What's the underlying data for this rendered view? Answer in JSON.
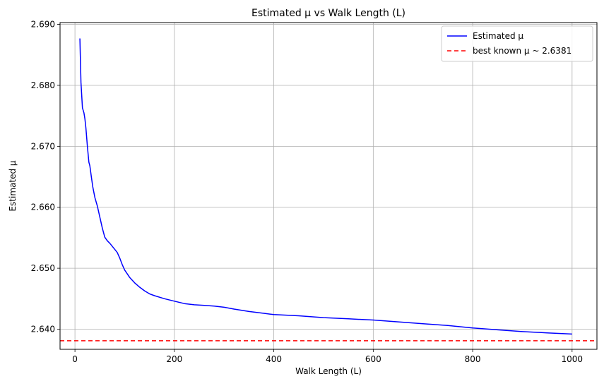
{
  "chart_data": {
    "type": "line",
    "title": "Estimated μ vs Walk Length (L)",
    "xlabel": "Walk Length (L)",
    "ylabel": "Estimated μ",
    "xlim": [
      -30,
      1050
    ],
    "ylim": [
      2.6367,
      2.6903
    ],
    "xticks": [
      0,
      200,
      400,
      600,
      800,
      1000
    ],
    "xtick_labels": [
      "0",
      "200",
      "400",
      "600",
      "800",
      "1000"
    ],
    "yticks": [
      2.64,
      2.65,
      2.66,
      2.67,
      2.68,
      2.69
    ],
    "ytick_labels": [
      "2.640",
      "2.650",
      "2.660",
      "2.670",
      "2.680",
      "2.690"
    ],
    "grid": true,
    "legend_position": "top-right",
    "series": [
      {
        "name": "Estimated μ",
        "color": "#0000ff",
        "style": "solid",
        "x": [
          10,
          12,
          15,
          18,
          20,
          22,
          25,
          28,
          30,
          33,
          36,
          40,
          45,
          50,
          55,
          60,
          65,
          70,
          80,
          85,
          90,
          95,
          100,
          110,
          120,
          130,
          140,
          150,
          160,
          180,
          200,
          220,
          240,
          260,
          280,
          300,
          320,
          350,
          380,
          400,
          450,
          500,
          550,
          600,
          650,
          700,
          750,
          800,
          850,
          900,
          950,
          1000
        ],
        "y": [
          2.6877,
          2.6805,
          2.6763,
          2.6755,
          2.6745,
          2.673,
          2.67,
          2.6674,
          2.6668,
          2.665,
          2.6633,
          2.6616,
          2.6602,
          2.6584,
          2.6566,
          2.6551,
          2.6545,
          2.6541,
          2.6531,
          2.6526,
          2.6517,
          2.6506,
          2.6497,
          2.6485,
          2.6476,
          2.6469,
          2.6463,
          2.6458,
          2.6455,
          2.645,
          2.6446,
          2.6442,
          2.644,
          2.6439,
          2.6438,
          2.6436,
          2.6433,
          2.6429,
          2.6426,
          2.6424,
          2.6422,
          2.6419,
          2.6417,
          2.6415,
          2.6412,
          2.6409,
          2.6406,
          2.6402,
          2.6399,
          2.6396,
          2.6394,
          2.6392
        ]
      },
      {
        "name": "best known μ ~ 2.6381",
        "color": "#ff0000",
        "style": "dashed",
        "type": "hline",
        "y": 2.6381
      }
    ]
  }
}
